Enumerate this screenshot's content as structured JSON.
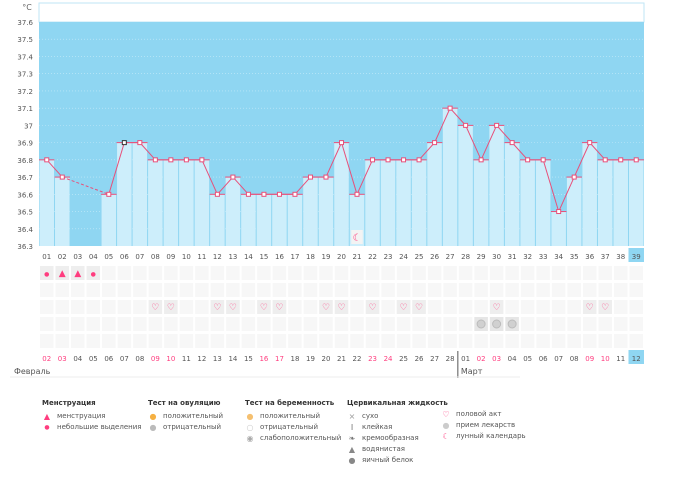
{
  "chart_data": {
    "type": "line",
    "unit_label": "°C",
    "ylim": [
      36.3,
      37.6
    ],
    "yticks": [
      "36.3",
      "36.4",
      "36.5",
      "36.6",
      "36.7",
      "36.8",
      "36.9",
      "37",
      "37.1",
      "37.2",
      "37.3",
      "37.4",
      "37.5",
      "37.6"
    ],
    "cycle_days": [
      "01",
      "02",
      "03",
      "04",
      "05",
      "06",
      "07",
      "08",
      "09",
      "10",
      "11",
      "12",
      "13",
      "14",
      "15",
      "16",
      "17",
      "18",
      "19",
      "20",
      "21",
      "22",
      "23",
      "24",
      "25",
      "26",
      "27",
      "28",
      "29",
      "30",
      "31",
      "32",
      "33",
      "34",
      "35",
      "36",
      "37",
      "38",
      "39"
    ],
    "temperatures": [
      36.8,
      36.7,
      null,
      null,
      36.6,
      36.9,
      36.9,
      36.8,
      36.8,
      36.8,
      36.8,
      36.6,
      36.7,
      36.6,
      36.6,
      36.6,
      36.6,
      36.7,
      36.7,
      36.9,
      36.6,
      36.8,
      36.8,
      36.8,
      36.8,
      36.9,
      37.1,
      37.0,
      36.8,
      37.0,
      36.9,
      36.8,
      36.8,
      36.5,
      36.7,
      36.9,
      36.8,
      36.8,
      36.8
    ],
    "current_day": "39",
    "dates": [
      "02",
      "03",
      "04",
      "05",
      "06",
      "07",
      "08",
      "09",
      "10",
      "11",
      "12",
      "13",
      "14",
      "15",
      "16",
      "17",
      "18",
      "19",
      "20",
      "21",
      "22",
      "23",
      "24",
      "25",
      "26",
      "27",
      "28",
      "01",
      "02",
      "03",
      "04",
      "05",
      "06",
      "07",
      "08",
      "09",
      "10",
      "11",
      "12"
    ],
    "weekend_dates_idx": [
      0,
      1,
      7,
      8,
      14,
      15,
      21,
      22,
      28,
      29,
      35,
      36
    ],
    "months": [
      "Февраль",
      "Март"
    ],
    "menstruation": {
      "0": "small",
      "1": "big",
      "2": "big",
      "3": "small"
    },
    "sex_days": [
      7,
      8,
      11,
      12,
      14,
      15,
      18,
      19,
      21,
      23,
      24,
      29,
      35,
      36
    ],
    "pill_days": [
      28,
      29,
      30
    ],
    "moon_days": [
      20
    ]
  },
  "colors": {
    "bg_dark": "#8fd6f2",
    "bar": "#cdeefb",
    "line": "#e8507a",
    "accent": "#ff3d7f",
    "today": "#8fd6f2"
  },
  "legend": {
    "menstruation": {
      "title": "Менструация",
      "items": [
        "менструация",
        "небольшие выделения"
      ]
    },
    "ovulation": {
      "title": "Тест на овуляцию",
      "items": [
        "положительный",
        "отрицательный"
      ]
    },
    "pregnancy": {
      "title": "Тест на беременность",
      "items": [
        "положительный",
        "отрицательный",
        "слабоположительный"
      ]
    },
    "cervical": {
      "title": "Цервикальная жидкость",
      "items": [
        "сухо",
        "клейкая",
        "кремообразная",
        "водянистая",
        "яичный белок"
      ]
    },
    "other": {
      "items": [
        "половой акт",
        "прием лекарств",
        "лунный календарь"
      ]
    }
  }
}
